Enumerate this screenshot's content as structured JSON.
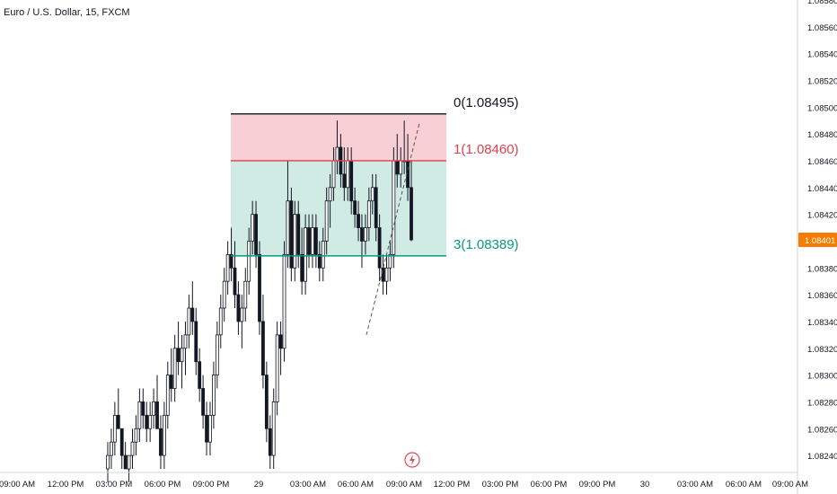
{
  "header": {
    "title": "Euro / U.S. Dollar, 15, FXCM"
  },
  "colors": {
    "fib_0": "#131722",
    "fib_1": "#e0404e",
    "fib_3": "#089981",
    "zone_red": "#f8cfd4",
    "zone_green": "#cfebe4",
    "price_tag": "#f57c00",
    "candle": "#131722",
    "event_icon": "#e24a5c"
  },
  "price_axis": {
    "ticks": [
      "1.08580",
      "1.08560",
      "1.08540",
      "1.08520",
      "1.08500",
      "1.08480",
      "1.08460",
      "1.08440",
      "1.08420",
      "1.08400",
      "1.08380",
      "1.08360",
      "1.08340",
      "1.08320",
      "1.08300",
      "1.08280",
      "1.08260",
      "1.08240"
    ],
    "current_price": "1.08401"
  },
  "time_axis": {
    "ticks": [
      "09:00 AM",
      "12:00 PM",
      "03:00 PM",
      "06:00 PM",
      "09:00 PM",
      "29",
      "03:00 AM",
      "06:00 AM",
      "09:00 AM",
      "12:00 PM",
      "03:00 PM",
      "06:00 PM",
      "09:00 PM",
      "30",
      "03:00 AM",
      "06:00 AM",
      "09:00 AM"
    ]
  },
  "fib_levels": [
    {
      "label": "0(1.08495)",
      "color_key": "fib_0",
      "price": 1.08495
    },
    {
      "label": "1(1.08460)",
      "color_key": "fib_1",
      "price": 1.0846
    },
    {
      "label": "3(1.08389)",
      "color_key": "fib_3",
      "price": 1.08389
    }
  ],
  "chart_data": {
    "type": "candlestick",
    "title": "Euro / U.S. Dollar, 15, FXCM",
    "ylim": [
      1.0823,
      1.0858
    ],
    "y_ticks": [
      1.0858,
      1.0856,
      1.0854,
      1.0852,
      1.085,
      1.0848,
      1.0846,
      1.0844,
      1.0842,
      1.084,
      1.0838,
      1.0836,
      1.0834,
      1.0832,
      1.083,
      1.0828,
      1.0826,
      1.0824
    ],
    "current_price": 1.08401,
    "fib_zone": {
      "top": 1.08495,
      "mid": 1.0846,
      "bottom": 1.08389
    },
    "trend_line": {
      "from_price": 1.0833,
      "to_price": 1.08488
    },
    "candles": [
      [
        1.0823,
        1.0825,
        1.0822,
        1.0824
      ],
      [
        1.0824,
        1.0826,
        1.0823,
        1.0825
      ],
      [
        1.0825,
        1.0828,
        1.0824,
        1.0827
      ],
      [
        1.0827,
        1.0829,
        1.0826,
        1.0826
      ],
      [
        1.0826,
        1.0826,
        1.0823,
        1.0824
      ],
      [
        1.0824,
        1.0825,
        1.0823,
        1.0823
      ],
      [
        1.0823,
        1.0824,
        1.0822,
        1.0824
      ],
      [
        1.0824,
        1.0826,
        1.0823,
        1.0825
      ],
      [
        1.0825,
        1.0827,
        1.0824,
        1.0826
      ],
      [
        1.0826,
        1.0829,
        1.0825,
        1.0828
      ],
      [
        1.0828,
        1.0829,
        1.0826,
        1.0827
      ],
      [
        1.0827,
        1.0828,
        1.0825,
        1.0826
      ],
      [
        1.0826,
        1.0828,
        1.0825,
        1.0827
      ],
      [
        1.0827,
        1.0829,
        1.0826,
        1.0828
      ],
      [
        1.0828,
        1.083,
        1.0826,
        1.0826
      ],
      [
        1.0826,
        1.0827,
        1.0823,
        1.0824
      ],
      [
        1.0824,
        1.0828,
        1.0823,
        1.0827
      ],
      [
        1.0827,
        1.0831,
        1.0826,
        1.083
      ],
      [
        1.083,
        1.0832,
        1.0828,
        1.0829
      ],
      [
        1.0829,
        1.0833,
        1.0828,
        1.0832
      ],
      [
        1.0832,
        1.0834,
        1.083,
        1.0831
      ],
      [
        1.0831,
        1.0833,
        1.0829,
        1.0832
      ],
      [
        1.0832,
        1.0834,
        1.083,
        1.0833
      ],
      [
        1.0833,
        1.0836,
        1.0832,
        1.0835
      ],
      [
        1.0835,
        1.0837,
        1.0833,
        1.0834
      ],
      [
        1.0834,
        1.0835,
        1.083,
        1.0831
      ],
      [
        1.0831,
        1.0832,
        1.0828,
        1.0829
      ],
      [
        1.0829,
        1.083,
        1.0826,
        1.0827
      ],
      [
        1.0827,
        1.0828,
        1.0824,
        1.0825
      ],
      [
        1.0825,
        1.0828,
        1.0824,
        1.0827
      ],
      [
        1.0827,
        1.0831,
        1.0826,
        1.083
      ],
      [
        1.083,
        1.0834,
        1.0829,
        1.0833
      ],
      [
        1.0833,
        1.0836,
        1.0832,
        1.0835
      ],
      [
        1.0835,
        1.0838,
        1.0834,
        1.0837
      ],
      [
        1.0837,
        1.084,
        1.0836,
        1.0839
      ],
      [
        1.0839,
        1.0841,
        1.0837,
        1.0838
      ],
      [
        1.0838,
        1.084,
        1.0835,
        1.0836
      ],
      [
        1.0836,
        1.0837,
        1.0833,
        1.0834
      ],
      [
        1.0834,
        1.0836,
        1.0832,
        1.0835
      ],
      [
        1.0835,
        1.0838,
        1.0834,
        1.0837
      ],
      [
        1.0837,
        1.0841,
        1.0836,
        1.084
      ],
      [
        1.084,
        1.0843,
        1.0839,
        1.0842
      ],
      [
        1.0842,
        1.0843,
        1.0838,
        1.0839
      ],
      [
        1.0839,
        1.084,
        1.0833,
        1.0834
      ],
      [
        1.0834,
        1.0836,
        1.0829,
        1.083
      ],
      [
        1.083,
        1.0831,
        1.0825,
        1.0826
      ],
      [
        1.0826,
        1.0827,
        1.0823,
        1.0824
      ],
      [
        1.0824,
        1.0829,
        1.0823,
        1.0828
      ],
      [
        1.0828,
        1.0834,
        1.0827,
        1.0833
      ],
      [
        1.0833,
        1.0834,
        1.083,
        1.0832
      ],
      [
        1.0832,
        1.084,
        1.0831,
        1.0839
      ],
      [
        1.0839,
        1.0846,
        1.0838,
        1.0843
      ],
      [
        1.0843,
        1.0844,
        1.0837,
        1.0838
      ],
      [
        1.0838,
        1.0843,
        1.0837,
        1.0842
      ],
      [
        1.0842,
        1.0843,
        1.0838,
        1.0839
      ],
      [
        1.0839,
        1.0841,
        1.0836,
        1.0837
      ],
      [
        1.0837,
        1.0842,
        1.0836,
        1.0841
      ],
      [
        1.0841,
        1.0842,
        1.0838,
        1.0839
      ],
      [
        1.0839,
        1.0842,
        1.0838,
        1.0841
      ],
      [
        1.0841,
        1.0842,
        1.0838,
        1.0839
      ],
      [
        1.0839,
        1.084,
        1.0837,
        1.0838
      ],
      [
        1.0838,
        1.0841,
        1.0837,
        1.084
      ],
      [
        1.084,
        1.0844,
        1.0839,
        1.0843
      ],
      [
        1.0843,
        1.0845,
        1.0841,
        1.0844
      ],
      [
        1.0844,
        1.0847,
        1.0843,
        1.0846
      ],
      [
        1.0846,
        1.0849,
        1.0845,
        1.0847
      ],
      [
        1.0847,
        1.0848,
        1.0844,
        1.0845
      ],
      [
        1.0845,
        1.0847,
        1.0843,
        1.0844
      ],
      [
        1.0844,
        1.0847,
        1.0843,
        1.0846
      ],
      [
        1.0846,
        1.0847,
        1.0842,
        1.0843
      ],
      [
        1.0843,
        1.0844,
        1.0841,
        1.0842
      ],
      [
        1.0842,
        1.0843,
        1.084,
        1.0841
      ],
      [
        1.0841,
        1.0842,
        1.0838,
        1.084
      ],
      [
        1.084,
        1.0842,
        1.0839,
        1.0841
      ],
      [
        1.0841,
        1.0844,
        1.084,
        1.0843
      ],
      [
        1.0843,
        1.0845,
        1.0842,
        1.0844
      ],
      [
        1.0844,
        1.0845,
        1.084,
        1.0841
      ],
      [
        1.0841,
        1.0842,
        1.0837,
        1.0838
      ],
      [
        1.0838,
        1.0839,
        1.0836,
        1.0837
      ],
      [
        1.0837,
        1.0839,
        1.0836,
        1.0838
      ],
      [
        1.0838,
        1.084,
        1.0837,
        1.0839
      ],
      [
        1.0839,
        1.0847,
        1.0838,
        1.0846
      ],
      [
        1.0846,
        1.0848,
        1.0844,
        1.0845
      ],
      [
        1.0845,
        1.0847,
        1.0844,
        1.0846
      ],
      [
        1.0846,
        1.0849,
        1.0845,
        1.0846
      ],
      [
        1.0846,
        1.0848,
        1.0843,
        1.0844
      ],
      [
        1.0844,
        1.0846,
        1.084,
        1.08401
      ]
    ]
  }
}
